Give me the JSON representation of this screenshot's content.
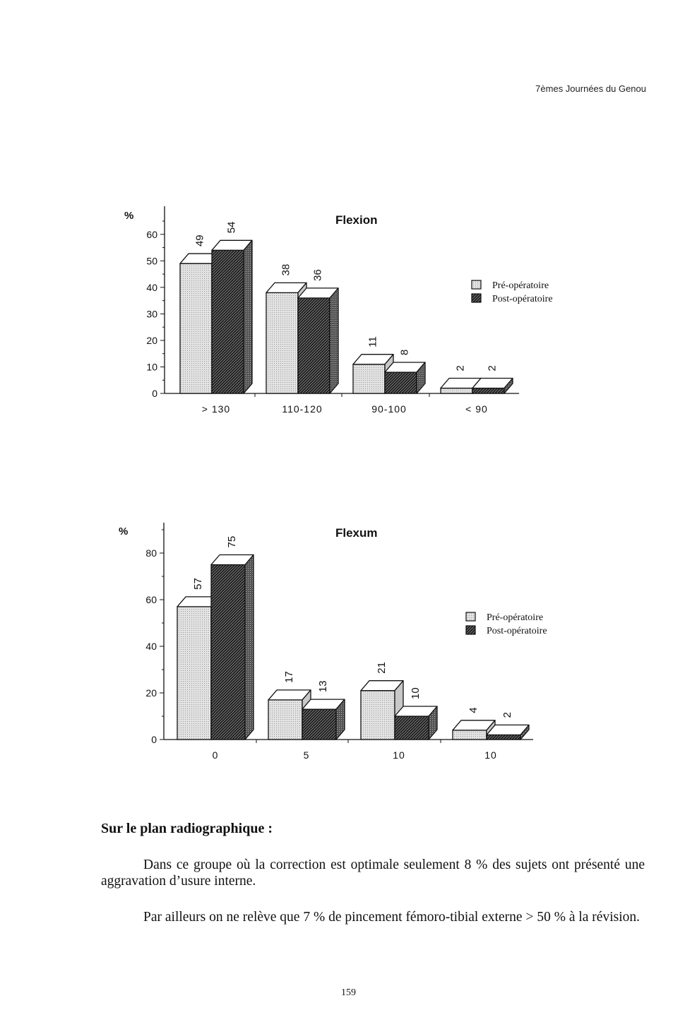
{
  "header": {
    "running_title": "7èmes Journées du Genou"
  },
  "chart_data": [
    {
      "type": "bar",
      "title": "Flexion",
      "ylabel": "%",
      "xlabel": "",
      "ylim": [
        0,
        65
      ],
      "yticks": [
        0,
        10,
        20,
        30,
        40,
        50,
        60
      ],
      "categories": [
        "> 130",
        "110-120",
        "90-100",
        "< 90"
      ],
      "series": [
        {
          "name": "Pré-opératoire",
          "values": [
            49,
            38,
            11,
            2
          ]
        },
        {
          "name": "Post-opératoire",
          "values": [
            54,
            36,
            8,
            2
          ]
        }
      ],
      "legend": "right",
      "grid": false
    },
    {
      "type": "bar",
      "title": "Flexum",
      "ylabel": "%",
      "xlabel": "",
      "ylim": [
        0,
        90
      ],
      "yticks": [
        0,
        20,
        40,
        60,
        80
      ],
      "categories": [
        "0",
        "5",
        "10",
        "10"
      ],
      "series": [
        {
          "name": "Pré-opératoire",
          "values": [
            57,
            17,
            21,
            4
          ]
        },
        {
          "name": "Post-opératoire",
          "values": [
            75,
            13,
            10,
            2
          ]
        }
      ],
      "legend": "right",
      "grid": false
    }
  ],
  "text": {
    "section_title": "Sur le plan radiographique :",
    "paragraph1": "Dans ce groupe où la correction est optimale seulement 8 % des sujets ont présenté une aggravation d’usure interne.",
    "paragraph2": "Par ailleurs on ne relève que 7 % de pincement fémoro-tibial externe > 50 % à la révision.",
    "page_number": "159"
  }
}
